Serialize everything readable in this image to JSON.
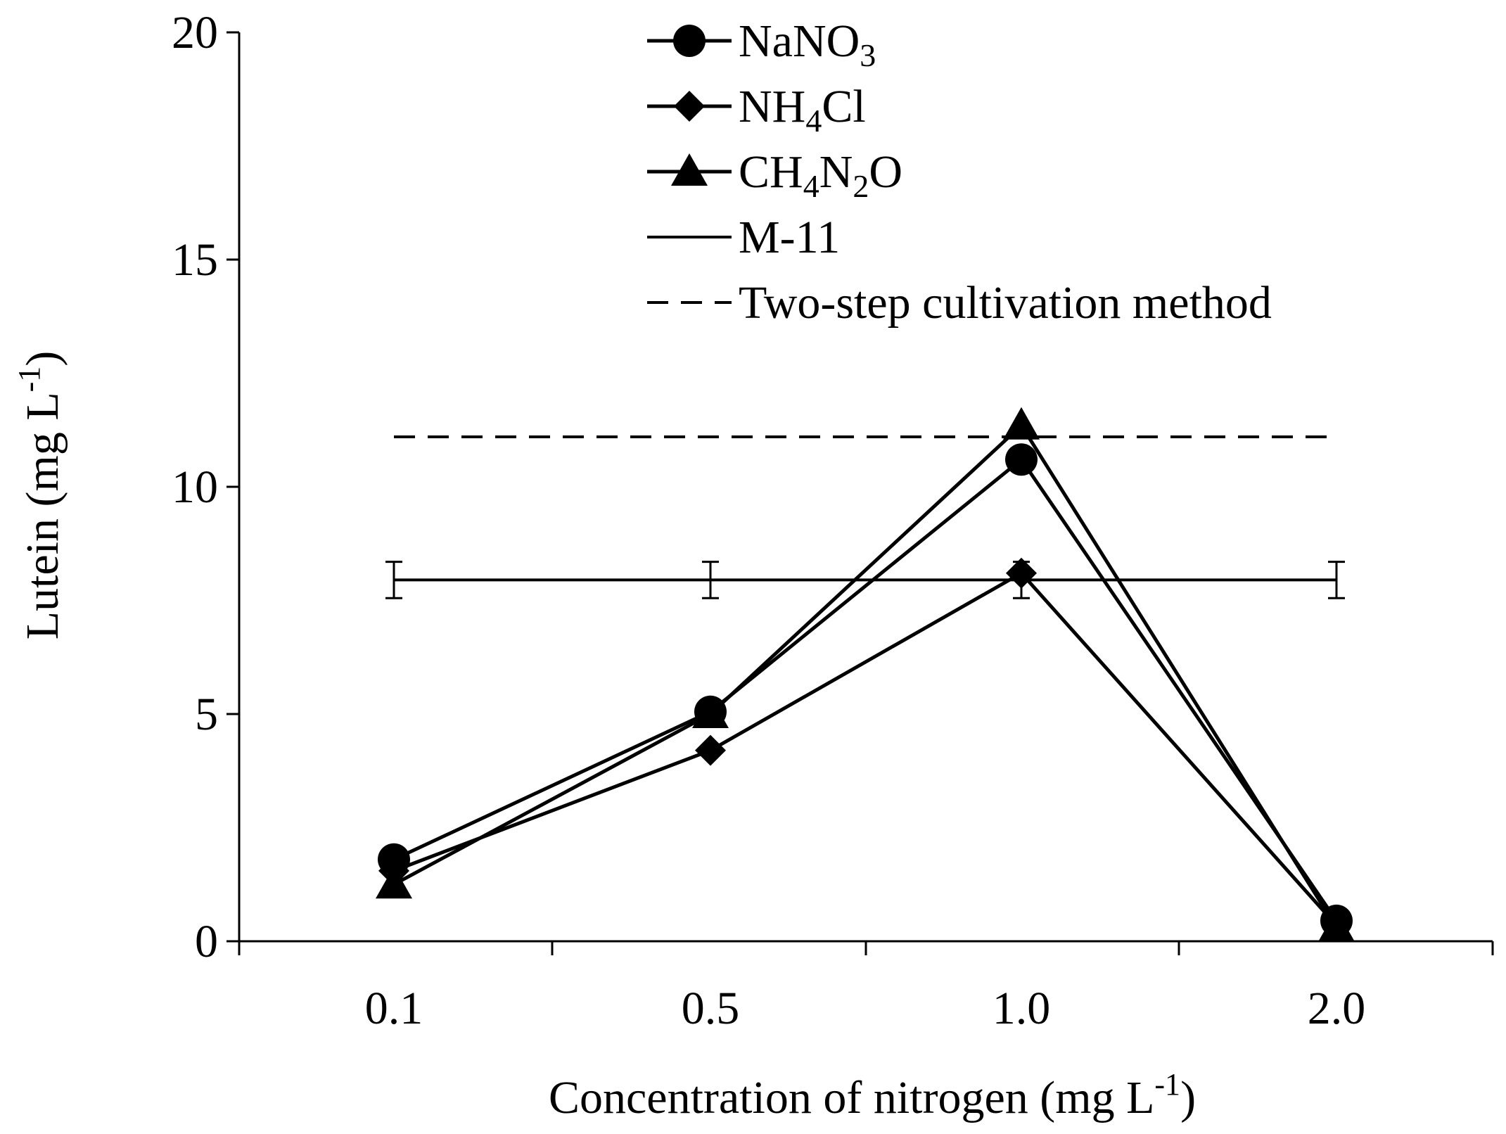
{
  "chart_data": {
    "type": "line",
    "title": "",
    "xlabel": "Concentration of nitrogen (mg L",
    "xlabel_sup": "-1",
    "xlabel_end": ")",
    "ylabel": "Lutein (mg L",
    "ylabel_sup": "-1",
    "ylabel_end": ")",
    "categories": [
      "0.1",
      "0.5",
      "1.0",
      "2.0"
    ],
    "ylim": [
      0,
      20
    ],
    "yticks": [
      0,
      5,
      10,
      15,
      20
    ],
    "ytick_labels": [
      "0",
      "5",
      "10",
      "15",
      "20"
    ],
    "series": [
      {
        "name": "NaNO3",
        "label_parts": [
          [
            "NaNO",
            ""
          ],
          [
            "3",
            "sub"
          ]
        ],
        "marker": "circle",
        "style": "solid",
        "values": [
          1.8,
          5.05,
          10.6,
          0.45
        ]
      },
      {
        "name": "NH4Cl",
        "label_parts": [
          [
            "NH",
            ""
          ],
          [
            "4",
            "sub"
          ],
          [
            "Cl",
            ""
          ]
        ],
        "marker": "diamond",
        "style": "solid",
        "values": [
          1.55,
          4.2,
          8.1,
          0.35
        ]
      },
      {
        "name": "CH4N2O",
        "label_parts": [
          [
            "CH",
            ""
          ],
          [
            "4",
            "sub"
          ],
          [
            "N",
            ""
          ],
          [
            "2",
            "sub"
          ],
          [
            "O",
            ""
          ]
        ],
        "marker": "triangle",
        "style": "solid",
        "values": [
          1.25,
          5.0,
          11.35,
          0.3
        ]
      },
      {
        "name": "M-11",
        "label_parts": [
          [
            "M-11",
            ""
          ]
        ],
        "marker": "none",
        "style": "solid-thin",
        "values": [
          7.95,
          7.95,
          7.95,
          7.95
        ],
        "error": 0.4
      },
      {
        "name": "Two-step cultivation method",
        "label_parts": [
          [
            "Two-step cultivation method",
            ""
          ]
        ],
        "marker": "none",
        "style": "dashed",
        "values": [
          11.1,
          11.1,
          11.1,
          11.1
        ]
      }
    ],
    "legend_position": "top-center",
    "grid": false
  }
}
